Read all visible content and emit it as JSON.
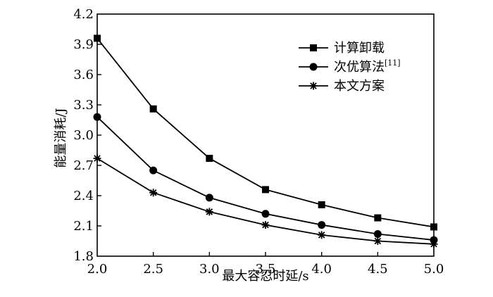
{
  "chart_data": {
    "type": "line",
    "xlabel": "最大容忍时延/s",
    "ylabel": "能量消耗/J",
    "xlim": [
      2.0,
      5.0
    ],
    "ylim": [
      1.8,
      4.2
    ],
    "x": [
      2.0,
      2.5,
      3.0,
      3.5,
      4.0,
      4.5,
      5.0
    ],
    "x_ticks": [
      "2.0",
      "2.5",
      "3.0",
      "3.5",
      "4.0",
      "4.5",
      "5.0"
    ],
    "y_ticks": [
      "1.8",
      "2.1",
      "2.4",
      "2.7",
      "3.0",
      "3.3",
      "3.6",
      "3.9",
      "4.2"
    ],
    "y_tick_values": [
      1.8,
      2.1,
      2.4,
      2.7,
      3.0,
      3.3,
      3.6,
      3.9,
      4.2
    ],
    "legend_position": "top-right",
    "grid": false,
    "series": [
      {
        "name": "计算卸载",
        "name_sup": "",
        "marker": "square",
        "values": [
          3.96,
          3.26,
          2.77,
          2.46,
          2.31,
          2.18,
          2.09
        ]
      },
      {
        "name": "次优算法",
        "name_sup": "[11]",
        "marker": "circle",
        "values": [
          3.18,
          2.65,
          2.38,
          2.22,
          2.11,
          2.02,
          1.96
        ]
      },
      {
        "name": "本文方案",
        "name_sup": "",
        "marker": "star",
        "values": [
          2.77,
          2.43,
          2.24,
          2.11,
          2.01,
          1.95,
          1.92
        ]
      }
    ]
  }
}
